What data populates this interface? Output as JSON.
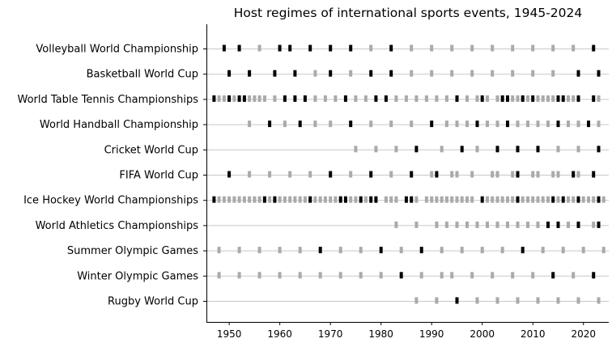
{
  "chart_data": {
    "type": "scatter",
    "title": "Host regimes of international sports events, 1945-2024",
    "xlabel": "",
    "ylabel": "",
    "xlim": [
      1945.5,
      2025
    ],
    "x_ticks": [
      1950,
      1960,
      1970,
      1980,
      1990,
      2000,
      2010,
      2020
    ],
    "grid": "horizontal lines per event",
    "legend": "none",
    "colors": {
      "autocracy": "#000000",
      "democracy": "#aaaaaa",
      "grid": "#c8c8c8"
    },
    "categories": [
      "Volleyball World Championship",
      "Basketball World Cup",
      "World Table Tennis Championships",
      "World Handball Championship",
      "Cricket World Cup",
      "FIFA World Cup",
      "Ice Hockey World Championships",
      "World Athletics Championships",
      "Summer Olympic Games",
      "Winter Olympic Games",
      "Rugby World Cup"
    ],
    "series": [
      {
        "color": "#000000",
        "points": {
          "Volleyball World Championship": [
            1949,
            1952,
            1960,
            1962,
            1966,
            1970,
            1974,
            1982,
            2022
          ],
          "Basketball World Cup": [
            1950,
            1954,
            1959,
            1963,
            1970,
            1978,
            1982,
            2019,
            2023
          ],
          "World Table Tennis Championships": [
            1947,
            1950,
            1952,
            1953,
            1961,
            1963,
            1965,
            1973,
            1979,
            1981,
            1995,
            2000,
            2004,
            2005,
            2008,
            2010,
            2015,
            2016,
            2019,
            2022
          ],
          "World Handball Championship": [
            1958,
            1964,
            1974,
            1990,
            1999,
            2005,
            2015,
            2021
          ],
          "Cricket World Cup": [
            1987,
            1996,
            2003,
            2007,
            2011,
            2023
          ],
          "FIFA World Cup": [
            1950,
            1970,
            1978,
            1986,
            1991,
            2007,
            2018,
            2022
          ],
          "Ice Hockey World Championships": [
            1947,
            1957,
            1959,
            1966,
            1972,
            1973,
            1976,
            1978,
            1979,
            1985,
            1986,
            2000,
            2007,
            2014,
            2016,
            2019,
            2023
          ],
          "World Athletics Championships": [
            2013,
            2015,
            2019,
            2023
          ],
          "Summer Olympic Games": [
            1968,
            1980,
            1988,
            2008
          ],
          "Winter Olympic Games": [
            1984,
            2014,
            2022
          ],
          "Rugby World Cup": [
            1995
          ]
        }
      },
      {
        "color": "#aaaaaa",
        "points": {
          "Volleyball World Championship": [
            1956,
            1978,
            1986,
            1990,
            1994,
            1998,
            2002,
            2006,
            2010,
            2014,
            2018
          ],
          "Basketball World Cup": [
            1967,
            1974,
            1986,
            1990,
            1994,
            1998,
            2002,
            2006,
            2010,
            2014
          ],
          "World Table Tennis Championships": [
            1948,
            1949,
            1951,
            1954,
            1955,
            1956,
            1957,
            1959,
            1967,
            1969,
            1971,
            1975,
            1977,
            1983,
            1985,
            1987,
            1989,
            1991,
            1993,
            1997,
            1999,
            2001,
            2003,
            2006,
            2007,
            2009,
            2011,
            2012,
            2013,
            2014,
            2017,
            2018,
            2023
          ],
          "World Handball Championship": [
            1954,
            1961,
            1967,
            1970,
            1978,
            1982,
            1986,
            1993,
            1995,
            1997,
            2001,
            2003,
            2007,
            2009,
            2011,
            2013,
            2017,
            2019,
            2023
          ],
          "Cricket World Cup": [
            1975,
            1979,
            1983,
            1992,
            1999,
            2015,
            2019
          ],
          "FIFA World Cup": [
            1954,
            1958,
            1962,
            1966,
            1974,
            1982,
            1990,
            1994,
            1995,
            1998,
            2002,
            2003,
            2006,
            2010,
            2011,
            2014,
            2015,
            2019
          ],
          "Ice Hockey World Championships": [
            1948,
            1949,
            1950,
            1951,
            1952,
            1953,
            1954,
            1955,
            1956,
            1958,
            1960,
            1961,
            1962,
            1963,
            1964,
            1965,
            1967,
            1968,
            1969,
            1970,
            1971,
            1974,
            1975,
            1977,
            1981,
            1982,
            1983,
            1987,
            1989,
            1990,
            1991,
            1992,
            1993,
            1994,
            1995,
            1996,
            1997,
            1998,
            2001,
            2002,
            2003,
            2004,
            2005,
            2006,
            2008,
            2009,
            2010,
            2011,
            2012,
            2013,
            2015,
            2017,
            2018,
            2020,
            2021,
            2022,
            2024
          ],
          "World Athletics Championships": [
            1983,
            1987,
            1991,
            1993,
            1995,
            1997,
            1999,
            2001,
            2003,
            2005,
            2007,
            2009,
            2011,
            2017,
            2022
          ],
          "Summer Olympic Games": [
            1948,
            1952,
            1956,
            1960,
            1964,
            1972,
            1976,
            1984,
            1992,
            1996,
            2000,
            2004,
            2012,
            2016,
            2020,
            2024
          ],
          "Winter Olympic Games": [
            1948,
            1952,
            1956,
            1960,
            1964,
            1968,
            1972,
            1976,
            1980,
            1988,
            1992,
            1994,
            1998,
            2002,
            2006,
            2010,
            2018
          ],
          "Rugby World Cup": [
            1987,
            1991,
            1999,
            2003,
            2007,
            2011,
            2015,
            2019,
            2023
          ]
        }
      }
    ]
  }
}
